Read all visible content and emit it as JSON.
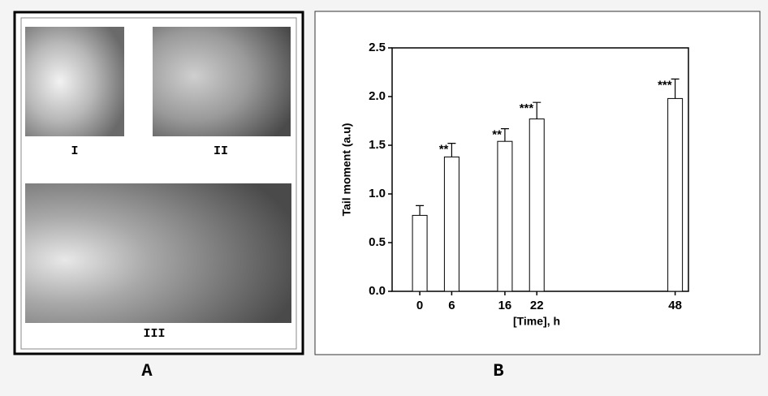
{
  "panel_a": {
    "label": "A",
    "images": [
      "I",
      "II",
      "III"
    ]
  },
  "panel_b_label": "B",
  "chart_data": {
    "type": "bar",
    "xlabel": "[Time], h",
    "ylabel": "Tail moment (a.u)",
    "x": [
      0,
      6,
      16,
      22,
      48
    ],
    "values": [
      0.78,
      1.38,
      1.54,
      1.77,
      1.98
    ],
    "errors": [
      0.1,
      0.14,
      0.13,
      0.17,
      0.2
    ],
    "annotations": [
      null,
      "**",
      "**",
      "***",
      "***"
    ],
    "color": "#ffffff",
    "xlim": [
      -5.2,
      50.5
    ],
    "xticks": [
      0,
      6,
      16,
      22,
      48
    ],
    "ylim": [
      0,
      2.5
    ],
    "yticks": [
      {
        "value": 0,
        "label": "0.0"
      },
      0.5,
      {
        "value": 1,
        "label": "1.0"
      },
      1.5,
      {
        "value": 2,
        "label": "2.0"
      },
      2.5
    ]
  }
}
